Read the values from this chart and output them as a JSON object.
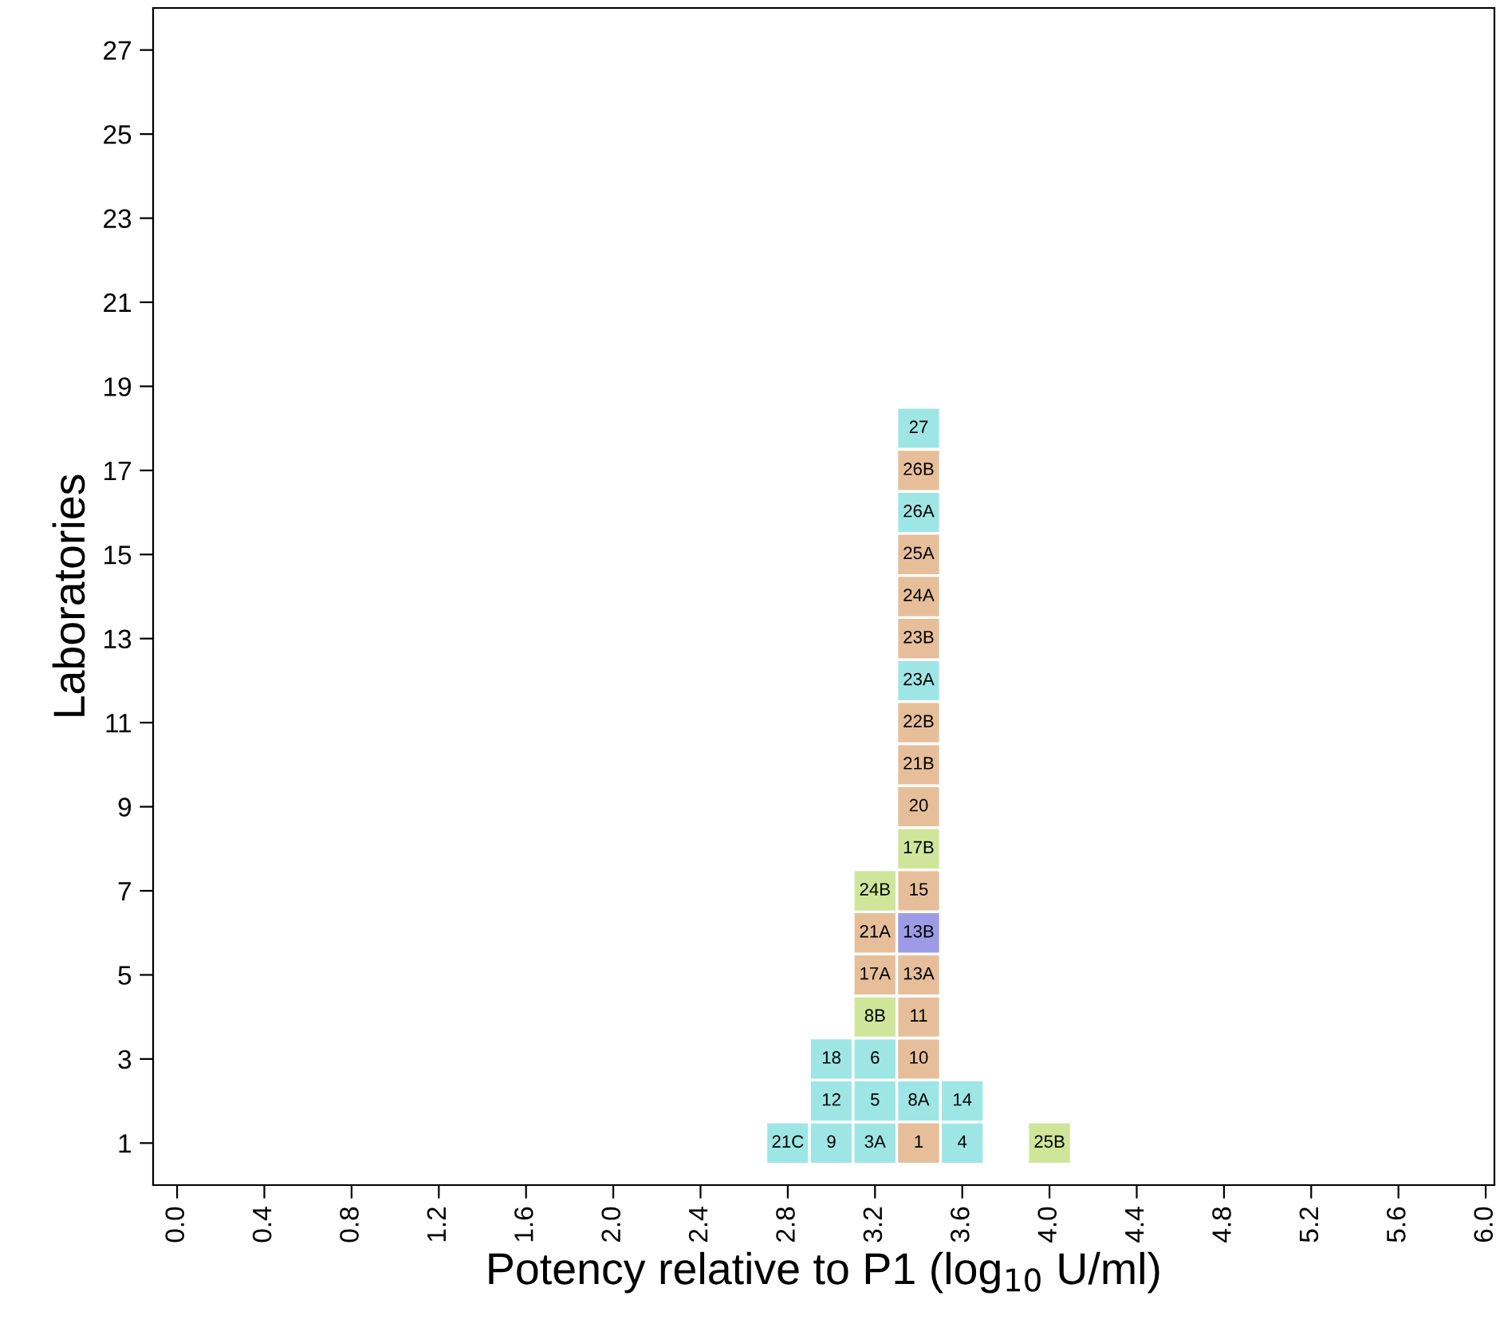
{
  "chart_data": {
    "type": "scatter",
    "marker": "square",
    "xlabel": "Potency relative to P1 (log$_{10}$ U/ml)",
    "ylabel": "Laboratories",
    "xlim": [
      -0.11,
      6.04
    ],
    "ylim": [
      0,
      28
    ],
    "xticks": [
      {
        "value": 0,
        "label": "0.0"
      },
      0.4,
      0.8,
      1.2,
      1.6,
      {
        "value": 2,
        "label": "2.0"
      },
      2.4,
      2.8,
      3.2,
      3.6,
      {
        "value": 4,
        "label": "4.0"
      },
      4.4,
      4.8,
      5.2,
      5.6,
      {
        "value": 6,
        "label": "6.0"
      }
    ],
    "yticks": [
      1,
      3,
      5,
      7,
      9,
      11,
      13,
      15,
      17,
      19,
      21,
      23,
      25,
      27
    ],
    "grid": false,
    "legend": false,
    "series": [
      {
        "color": "#9ee6e6",
        "x": [
          2.8,
          3.0,
          3.0,
          3.0,
          3.2,
          3.2,
          3.2,
          3.4,
          3.4,
          3.4,
          3.4,
          3.6,
          3.6
        ],
        "values": [
          1,
          1,
          2,
          3,
          1,
          2,
          3,
          2,
          12,
          16,
          18,
          1,
          2
        ]
      },
      {
        "color": "#e6bf9a",
        "x": [
          3.2,
          3.2,
          3.4,
          3.4,
          3.4,
          3.4,
          3.4,
          3.4,
          3.4,
          3.4,
          3.4,
          3.4,
          3.4,
          3.4
        ],
        "values": [
          5,
          6,
          1,
          3,
          4,
          5,
          7,
          9,
          10,
          11,
          13,
          14,
          15,
          17
        ]
      },
      {
        "color": "#cfe69a",
        "x": [
          3.2,
          3.2,
          3.4,
          4.0
        ],
        "values": [
          4,
          7,
          8,
          1
        ]
      },
      {
        "color": "#9e9be6",
        "x": [
          3.4
        ],
        "values": [
          6
        ]
      }
    ],
    "annotations": [
      {
        "text": "21C",
        "x": 2.8,
        "y": 1
      },
      {
        "text": "9",
        "x": 3.0,
        "y": 1
      },
      {
        "text": "12",
        "x": 3.0,
        "y": 2
      },
      {
        "text": "18",
        "x": 3.0,
        "y": 3
      },
      {
        "text": "3A",
        "x": 3.2,
        "y": 1
      },
      {
        "text": "5",
        "x": 3.2,
        "y": 2
      },
      {
        "text": "6",
        "x": 3.2,
        "y": 3
      },
      {
        "text": "8B",
        "x": 3.2,
        "y": 4
      },
      {
        "text": "17A",
        "x": 3.2,
        "y": 5
      },
      {
        "text": "21A",
        "x": 3.2,
        "y": 6
      },
      {
        "text": "24B",
        "x": 3.2,
        "y": 7
      },
      {
        "text": "1",
        "x": 3.4,
        "y": 1
      },
      {
        "text": "8A",
        "x": 3.4,
        "y": 2
      },
      {
        "text": "10",
        "x": 3.4,
        "y": 3
      },
      {
        "text": "11",
        "x": 3.4,
        "y": 4
      },
      {
        "text": "13A",
        "x": 3.4,
        "y": 5
      },
      {
        "text": "13B",
        "x": 3.4,
        "y": 6
      },
      {
        "text": "15",
        "x": 3.4,
        "y": 7
      },
      {
        "text": "17B",
        "x": 3.4,
        "y": 8
      },
      {
        "text": "20",
        "x": 3.4,
        "y": 9
      },
      {
        "text": "21B",
        "x": 3.4,
        "y": 10
      },
      {
        "text": "22B",
        "x": 3.4,
        "y": 11
      },
      {
        "text": "23A",
        "x": 3.4,
        "y": 12
      },
      {
        "text": "23B",
        "x": 3.4,
        "y": 13
      },
      {
        "text": "24A",
        "x": 3.4,
        "y": 14
      },
      {
        "text": "25A",
        "x": 3.4,
        "y": 15
      },
      {
        "text": "26A",
        "x": 3.4,
        "y": 16
      },
      {
        "text": "26B",
        "x": 3.4,
        "y": 17
      },
      {
        "text": "27",
        "x": 3.4,
        "y": 18
      },
      {
        "text": "4",
        "x": 3.6,
        "y": 1
      },
      {
        "text": "14",
        "x": 3.6,
        "y": 2
      },
      {
        "text": "25B",
        "x": 4.0,
        "y": 1
      }
    ]
  }
}
